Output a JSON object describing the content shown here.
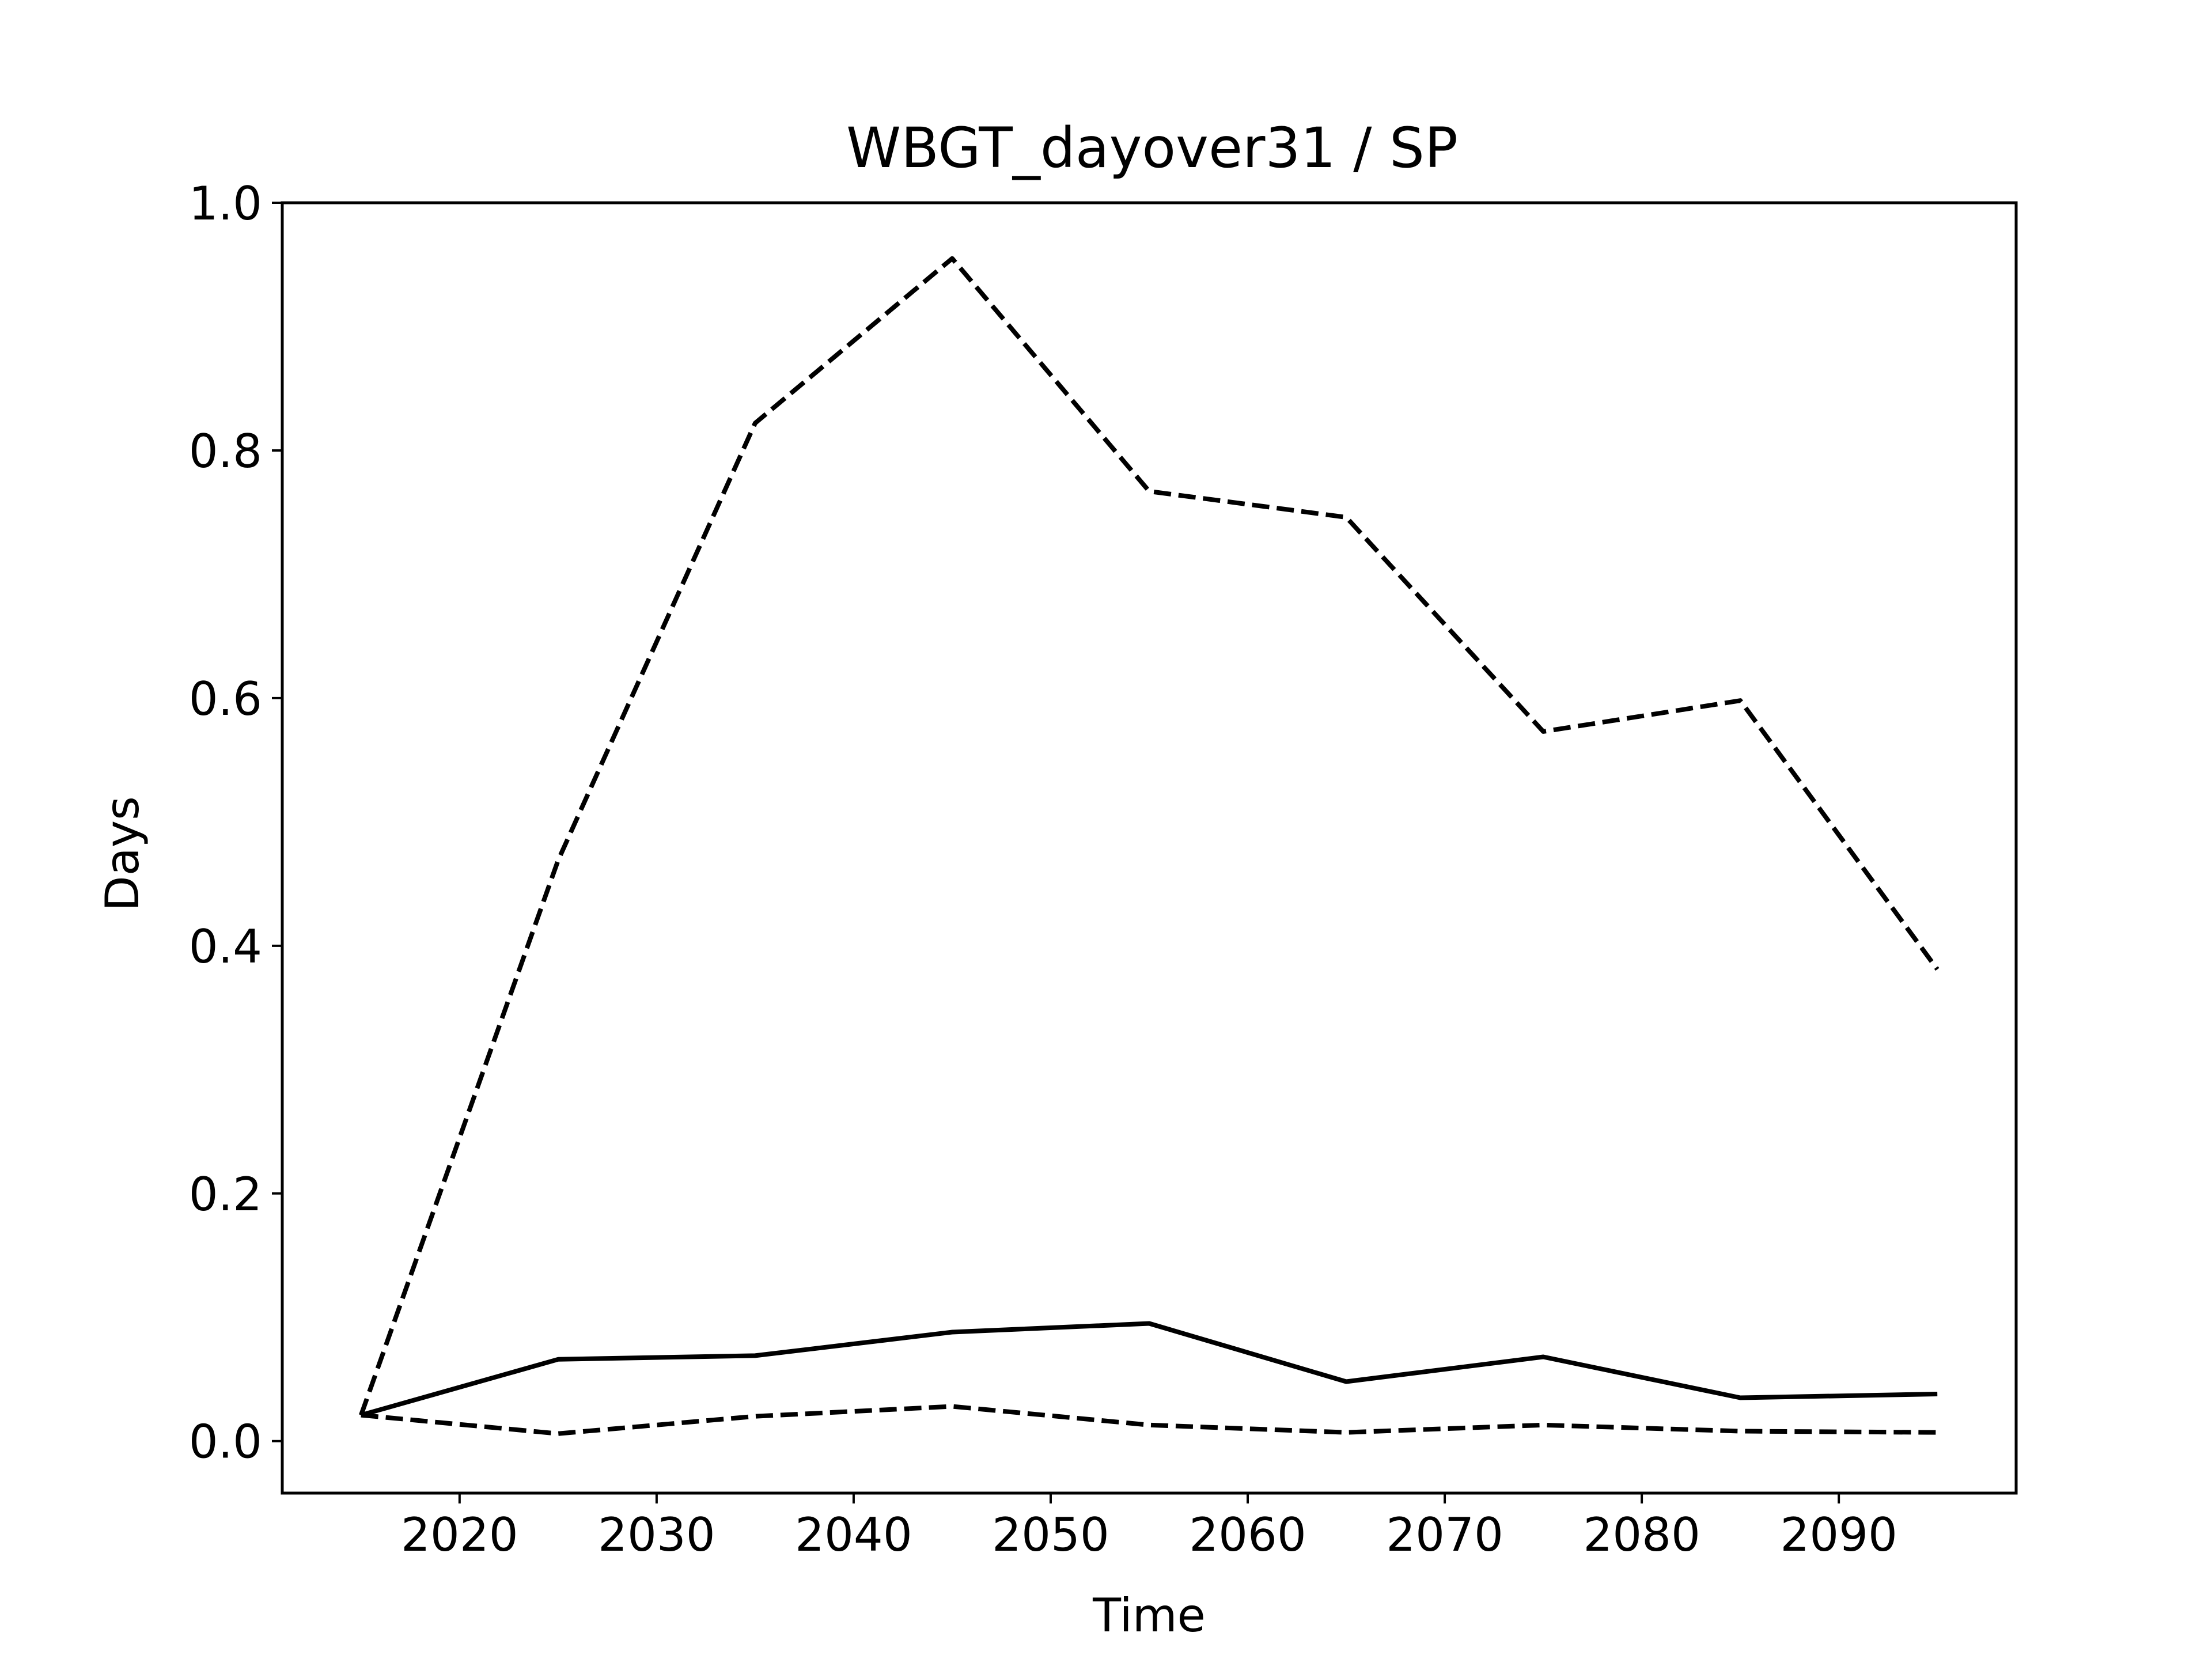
{
  "chart_data": {
    "type": "line",
    "title": "WBGT_dayover31 / SP",
    "xlabel": "Time",
    "ylabel": "Days",
    "xlim": [
      2011,
      2099
    ],
    "ylim": [
      -0.042,
      1.0
    ],
    "xticks": [
      2020,
      2030,
      2040,
      2050,
      2060,
      2070,
      2080,
      2090
    ],
    "yticks": [
      0.0,
      0.2,
      0.4,
      0.6,
      0.8,
      1.0
    ],
    "ytick_labels": [
      "0.0",
      "0.2",
      "0.4",
      "0.6",
      "0.8",
      "1.0"
    ],
    "grid": false,
    "x": [
      2015,
      2025,
      2035,
      2045,
      2055,
      2065,
      2075,
      2085,
      2095
    ],
    "series": [
      {
        "style": "solid",
        "color": "#000000",
        "values": [
          0.021,
          0.066,
          0.069,
          0.088,
          0.095,
          0.048,
          0.068,
          0.035,
          0.038
        ]
      },
      {
        "style": "dashed",
        "color": "#000000",
        "values": [
          0.021,
          0.469,
          0.822,
          0.955,
          0.767,
          0.746,
          0.573,
          0.598,
          0.381
        ]
      },
      {
        "style": "dashed",
        "color": "#000000",
        "values": [
          0.021,
          0.006,
          0.02,
          0.028,
          0.013,
          0.007,
          0.013,
          0.008,
          0.007
        ]
      }
    ]
  }
}
